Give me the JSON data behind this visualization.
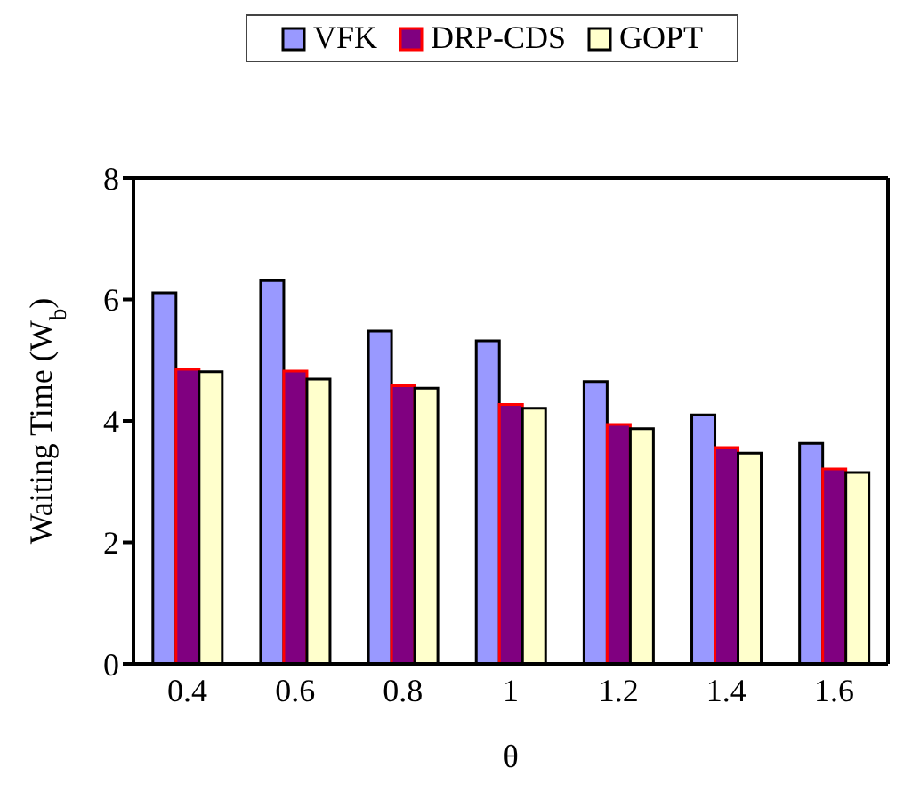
{
  "chart_data": {
    "type": "bar",
    "xlabel": "θ",
    "ylabel": "Waiting Time (W$_{b}$)",
    "categories": [
      "0.4",
      "0.6",
      "0.8",
      "1",
      "1.2",
      "1.4",
      "1.6"
    ],
    "series": [
      {
        "name": "VFK",
        "color": "#9999ff",
        "values": [
          6.11,
          6.31,
          5.48,
          5.32,
          4.65,
          4.1,
          3.63
        ]
      },
      {
        "name": "DRP-CDS",
        "color": "#800080",
        "values": [
          4.85,
          4.82,
          4.58,
          4.27,
          3.94,
          3.56,
          3.21
        ]
      },
      {
        "name": "GOPT",
        "color": "#ffffcc",
        "values": [
          4.81,
          4.69,
          4.54,
          4.21,
          3.87,
          3.47,
          3.15
        ]
      }
    ],
    "ylim": [
      0,
      8
    ],
    "yticks": [
      0,
      2,
      4,
      6,
      8
    ],
    "legend": "top"
  }
}
